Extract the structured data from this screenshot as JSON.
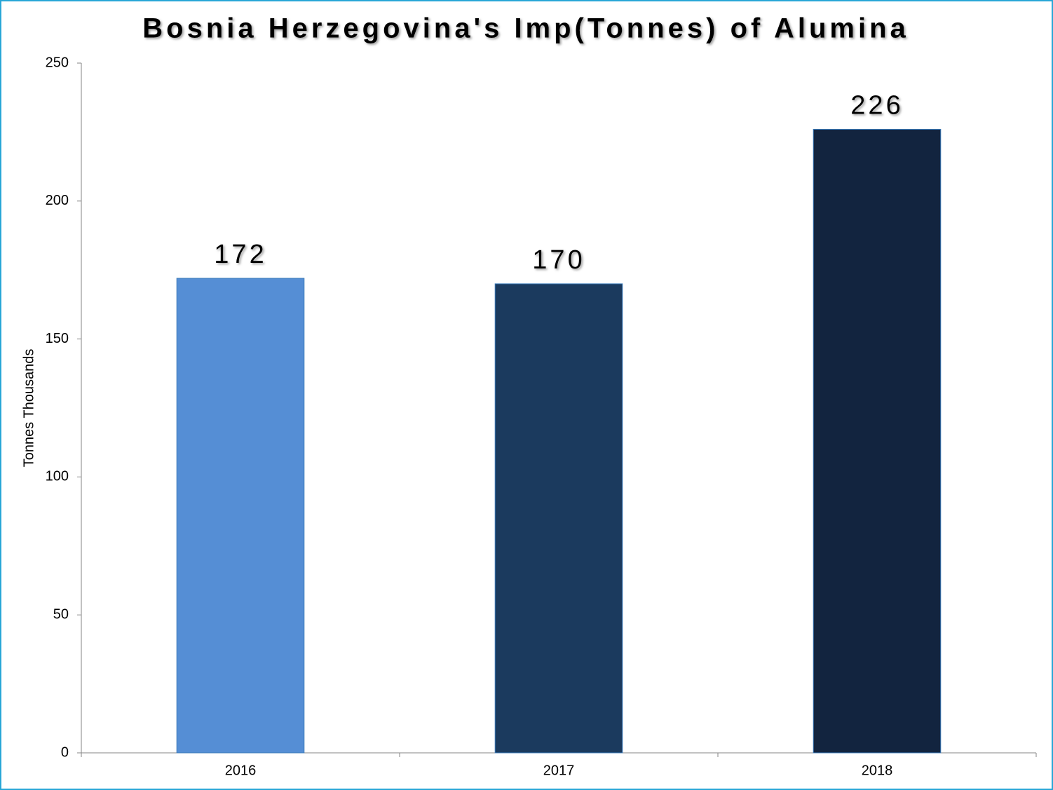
{
  "chart_data": {
    "type": "bar",
    "title": "Bosnia Herzegovina's Imp(Tonnes) of Alumina",
    "y_label": "Tonnes Thousands",
    "categories": [
      "2016",
      "2017",
      "2018"
    ],
    "values": [
      172,
      170,
      226
    ],
    "colors": [
      "#558ed5",
      "#1b3a5e",
      "#12243f"
    ],
    "ylim": [
      0,
      250
    ],
    "yticks": [
      0,
      50,
      100,
      150,
      200,
      250
    ],
    "grid": false
  }
}
